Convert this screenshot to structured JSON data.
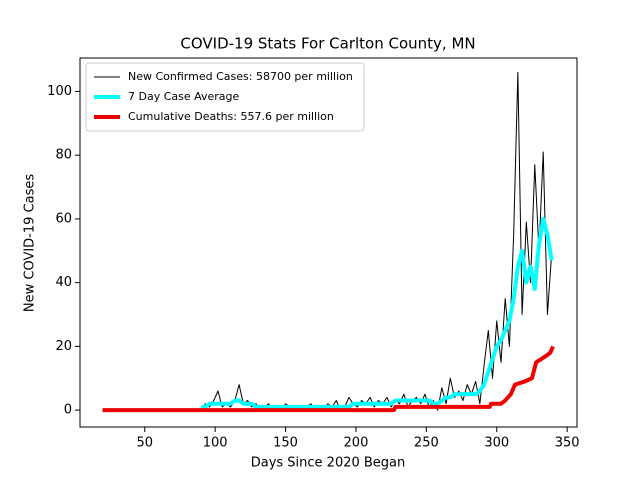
{
  "chart_data": {
    "type": "line",
    "title": "COVID-19 Stats For Carlton County, MN",
    "xlabel": "Days Since 2020 Began",
    "ylabel": "New COVID-19 Cases",
    "xlim": [
      4,
      357
    ],
    "ylim": [
      -5.3,
      110.5
    ],
    "xticks": [
      50,
      100,
      150,
      200,
      250,
      300,
      350
    ],
    "yticks": [
      0,
      20,
      40,
      60,
      80,
      100
    ],
    "legend": "upper left",
    "series": [
      {
        "name": "New Confirmed Cases: 58700 per million",
        "color": "#000000",
        "width": 1,
        "x": [
          90,
          93,
          96,
          99,
          102,
          105,
          108,
          111,
          114,
          117,
          120,
          123,
          126,
          129,
          132,
          135,
          138,
          141,
          144,
          147,
          150,
          153,
          156,
          159,
          162,
          165,
          168,
          171,
          174,
          177,
          180,
          183,
          186,
          189,
          192,
          195,
          198,
          201,
          204,
          207,
          210,
          213,
          216,
          219,
          222,
          225,
          228,
          231,
          234,
          237,
          240,
          243,
          246,
          249,
          252,
          255,
          258,
          261,
          264,
          267,
          270,
          273,
          276,
          279,
          282,
          285,
          288,
          291,
          294,
          297,
          300,
          303,
          306,
          309,
          312,
          315,
          318,
          321,
          324,
          327,
          330,
          333,
          336,
          339
        ],
        "values": [
          0,
          2,
          1,
          3,
          6,
          1,
          2,
          1,
          3,
          8,
          2,
          3,
          1,
          2,
          0,
          1,
          2,
          0,
          1,
          0,
          2,
          1,
          0,
          1,
          0,
          1,
          2,
          0,
          1,
          0,
          2,
          1,
          3,
          0,
          1,
          4,
          2,
          1,
          3,
          2,
          4,
          1,
          3,
          2,
          4,
          1,
          3,
          2,
          5,
          1,
          3,
          4,
          2,
          5,
          1,
          3,
          0,
          7,
          2,
          10,
          4,
          6,
          3,
          8,
          5,
          9,
          2,
          14,
          25,
          10,
          28,
          15,
          35,
          20,
          55,
          106,
          30,
          59,
          40,
          77,
          50,
          81,
          30,
          49
        ]
      },
      {
        "name": "7 Day Case Average",
        "color": "#00ffff",
        "width": 4,
        "x": [
          90,
          93,
          96,
          99,
          102,
          105,
          108,
          111,
          114,
          117,
          120,
          123,
          126,
          129,
          132,
          135,
          138,
          141,
          144,
          147,
          150,
          153,
          156,
          159,
          162,
          165,
          168,
          171,
          174,
          177,
          180,
          183,
          186,
          189,
          192,
          195,
          198,
          201,
          204,
          207,
          210,
          213,
          216,
          219,
          222,
          225,
          228,
          231,
          234,
          237,
          240,
          243,
          246,
          249,
          252,
          255,
          258,
          261,
          264,
          267,
          270,
          273,
          276,
          279,
          282,
          285,
          288,
          291,
          294,
          297,
          300,
          303,
          306,
          309,
          312,
          315,
          318,
          321,
          324,
          327,
          330,
          333,
          336,
          339
        ],
        "values": [
          1,
          1,
          2,
          2,
          2,
          2,
          2,
          2,
          3,
          3,
          2,
          2,
          2,
          1,
          1,
          1,
          1,
          1,
          1,
          1,
          1,
          1,
          1,
          1,
          1,
          1,
          1,
          1,
          1,
          1,
          1,
          1,
          1,
          1,
          1,
          1,
          2,
          2,
          2,
          2,
          2,
          2,
          2,
          2,
          2,
          2,
          3,
          3,
          3,
          3,
          3,
          3,
          3,
          3,
          3,
          2,
          2,
          3,
          4,
          4,
          5,
          5,
          5,
          5,
          5,
          5,
          6,
          8,
          12,
          16,
          20,
          22,
          25,
          28,
          35,
          45,
          50,
          40,
          45,
          38,
          52,
          60,
          55,
          47
        ]
      },
      {
        "name": "Cumulative Deaths: 557.6 per million",
        "color": "#ee0000",
        "width": 4,
        "x": [
          20,
          227,
          228,
          295,
          296,
          303,
          306,
          310,
          313,
          320,
          325,
          328,
          335,
          338,
          340
        ],
        "values": [
          0,
          0,
          1,
          1,
          2,
          2,
          3,
          5,
          8,
          9,
          10,
          15,
          17,
          18,
          20
        ]
      }
    ]
  }
}
